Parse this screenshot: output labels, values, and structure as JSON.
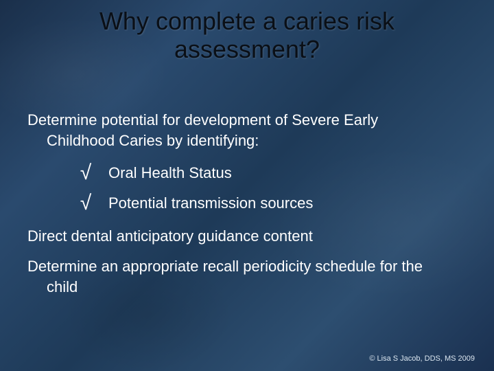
{
  "colors": {
    "background_base": "#23476a",
    "title_color": "#0a0f16",
    "body_text": "#ffffff",
    "footer_text": "#dbe6f0"
  },
  "typography": {
    "title_fontsize_pt": 27,
    "body_fontsize_pt": 16,
    "footer_fontsize_pt": 8,
    "font_family": "Tahoma"
  },
  "title": {
    "line1": "Why complete a caries risk",
    "line2": "assessment?"
  },
  "lead": {
    "line1": "Determine potential for development of Severe Early",
    "line2": "Childhood Caries by identifying:"
  },
  "checks": [
    {
      "mark": "√",
      "label": "Oral Health Status"
    },
    {
      "mark": "√",
      "label": "Potential transmission sources"
    }
  ],
  "para1": "Direct dental anticipatory guidance content",
  "para2": {
    "line1": "Determine an appropriate recall periodicity schedule for the",
    "line2": "child"
  },
  "footer": "© Lisa S Jacob, DDS, MS 2009"
}
